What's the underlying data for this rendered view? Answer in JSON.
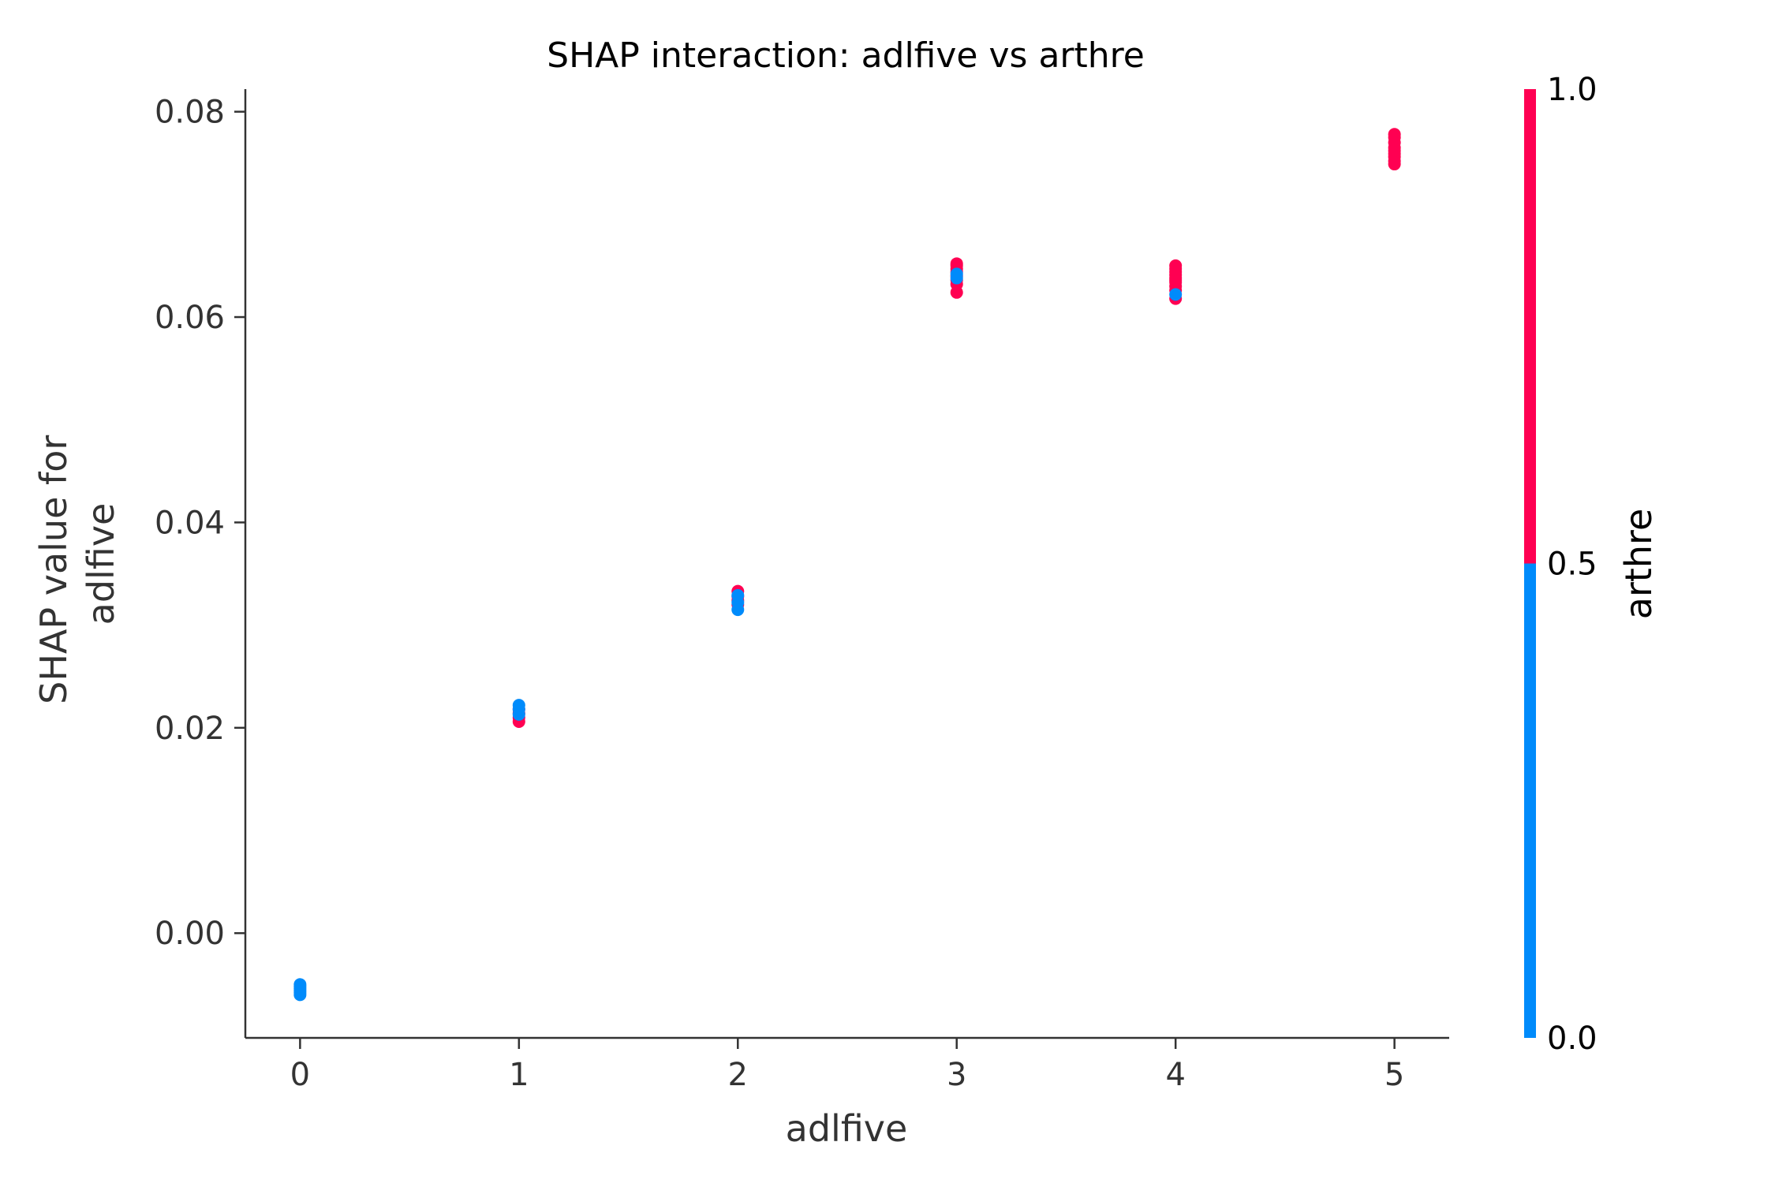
{
  "chart_data": {
    "type": "scatter",
    "title": "SHAP interaction: adlfive vs arthre",
    "xlabel": "adlfive",
    "ylabel_lines": [
      "SHAP value for",
      "adlfive"
    ],
    "xlim": [
      -0.25,
      5.25
    ],
    "ylim": [
      -0.0102,
      0.0822
    ],
    "xticks": [
      0,
      1,
      2,
      3,
      4,
      5
    ],
    "xtick_labels": [
      "0",
      "1",
      "2",
      "3",
      "4",
      "5"
    ],
    "yticks": [
      0.0,
      0.02,
      0.04,
      0.06,
      0.08
    ],
    "ytick_labels": [
      "0.00",
      "0.02",
      "0.04",
      "0.06",
      "0.08"
    ],
    "colorbar": {
      "label": "arthre",
      "min": 0.0,
      "max": 1.0,
      "ticks": [
        0.0,
        0.5,
        1.0
      ],
      "tick_labels": [
        "0.0",
        "0.5",
        "1.0"
      ],
      "low_color": "#008bfb",
      "high_color": "#ff0052"
    },
    "colors": {
      "low": "#008bfb",
      "high": "#ff0052",
      "axis": "#333333"
    },
    "series": [
      {
        "name": "arthre = 1",
        "color_value": 1,
        "x": [
          1,
          1,
          1,
          1,
          2,
          2,
          2,
          2,
          3,
          3,
          3,
          3,
          3,
          3,
          3,
          3,
          4,
          4,
          4,
          4,
          4,
          4,
          4,
          4,
          4,
          4,
          5,
          5,
          5,
          5,
          5,
          5,
          5,
          5,
          5
        ],
        "y": [
          0.0206,
          0.021,
          0.0214,
          0.0218,
          0.032,
          0.0324,
          0.0328,
          0.0333,
          0.0624,
          0.0632,
          0.0636,
          0.064,
          0.0644,
          0.0647,
          0.065,
          0.0652,
          0.0618,
          0.0626,
          0.063,
          0.0634,
          0.0638,
          0.0641,
          0.0644,
          0.0647,
          0.065,
          0.0636,
          0.0749,
          0.0752,
          0.0756,
          0.0759,
          0.0762,
          0.0765,
          0.077,
          0.0775,
          0.0778
        ]
      },
      {
        "name": "arthre = 0",
        "color_value": 0,
        "x": [
          0,
          0,
          0,
          0,
          0,
          0,
          1,
          1,
          1,
          2,
          2,
          2,
          3,
          3,
          4
        ],
        "y": [
          -0.006,
          -0.0058,
          -0.0056,
          -0.0054,
          -0.0052,
          -0.005,
          0.0213,
          0.0218,
          0.0222,
          0.0315,
          0.0322,
          0.0329,
          0.0638,
          0.0642,
          0.0622
        ]
      }
    ]
  }
}
